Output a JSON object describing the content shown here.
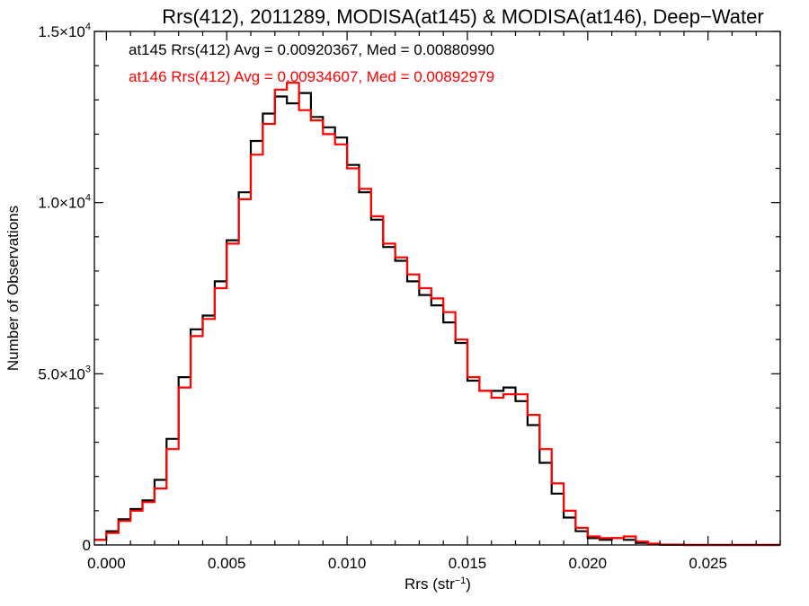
{
  "chart_data": {
    "type": "line",
    "title": "Rrs(412), 2011289, MODISA(at145) & MODISA(at146), Deep−Water",
    "xlabel_base": "Rrs (str",
    "xlabel_sup": "−1",
    "xlabel_close": ")",
    "ylabel": "Number of Observations",
    "xlim": [
      -0.0005,
      0.028
    ],
    "ylim": [
      0,
      15000
    ],
    "grid": false,
    "x_ticks": [
      {
        "value": 0.0,
        "label": "0.000"
      },
      {
        "value": 0.005,
        "label": "0.005"
      },
      {
        "value": 0.01,
        "label": "0.010"
      },
      {
        "value": 0.015,
        "label": "0.015"
      },
      {
        "value": 0.02,
        "label": "0.020"
      },
      {
        "value": 0.025,
        "label": "0.025"
      }
    ],
    "y_ticks": [
      {
        "value": 0,
        "mantissa": "0",
        "exp": ""
      },
      {
        "value": 5000,
        "mantissa": "5.0×10",
        "exp": "3"
      },
      {
        "value": 10000,
        "mantissa": "1.0×10",
        "exp": "4"
      },
      {
        "value": 15000,
        "mantissa": "1.5×10",
        "exp": "4"
      }
    ],
    "annotations": [
      {
        "text": "at145 Rrs(412) Avg = 0.00920367, Med = 0.00880990",
        "color": "#000000"
      },
      {
        "text": "at146 Rrs(412) Avg = 0.00934607, Med = 0.00892979",
        "color": "#ff0000"
      }
    ],
    "series": [
      {
        "color": "#000000",
        "points": [
          [
            -0.0005,
            150
          ],
          [
            0.0,
            400
          ],
          [
            0.0005,
            750
          ],
          [
            0.001,
            1050
          ],
          [
            0.0015,
            1300
          ],
          [
            0.002,
            1900
          ],
          [
            0.0025,
            3100
          ],
          [
            0.003,
            4900
          ],
          [
            0.0035,
            6300
          ],
          [
            0.004,
            6700
          ],
          [
            0.0045,
            7700
          ],
          [
            0.005,
            8900
          ],
          [
            0.0055,
            10300
          ],
          [
            0.006,
            11800
          ],
          [
            0.0065,
            12600
          ],
          [
            0.007,
            13100
          ],
          [
            0.0075,
            12900
          ],
          [
            0.008,
            13200
          ],
          [
            0.0085,
            12500
          ],
          [
            0.009,
            12200
          ],
          [
            0.0095,
            11900
          ],
          [
            0.01,
            11100
          ],
          [
            0.0105,
            10300
          ],
          [
            0.011,
            9500
          ],
          [
            0.0115,
            8700
          ],
          [
            0.012,
            8300
          ],
          [
            0.0125,
            7700
          ],
          [
            0.013,
            7300
          ],
          [
            0.0135,
            7000
          ],
          [
            0.014,
            6500
          ],
          [
            0.0145,
            5900
          ],
          [
            0.015,
            4800
          ],
          [
            0.0155,
            4500
          ],
          [
            0.016,
            4500
          ],
          [
            0.0165,
            4600
          ],
          [
            0.017,
            4200
          ],
          [
            0.0175,
            3500
          ],
          [
            0.018,
            2400
          ],
          [
            0.0185,
            1500
          ],
          [
            0.019,
            800
          ],
          [
            0.0195,
            400
          ],
          [
            0.02,
            200
          ],
          [
            0.0205,
            150
          ],
          [
            0.021,
            200
          ],
          [
            0.0215,
            150
          ],
          [
            0.022,
            60
          ],
          [
            0.0225,
            20
          ],
          [
            0.023,
            5
          ],
          [
            0.024,
            0
          ],
          [
            0.025,
            0
          ],
          [
            0.026,
            0
          ],
          [
            0.027,
            0
          ],
          [
            0.028,
            0
          ]
        ]
      },
      {
        "color": "#ff0000",
        "points": [
          [
            -0.0005,
            150
          ],
          [
            0.0,
            350
          ],
          [
            0.0005,
            700
          ],
          [
            0.001,
            1000
          ],
          [
            0.0015,
            1250
          ],
          [
            0.002,
            1650
          ],
          [
            0.0025,
            2800
          ],
          [
            0.003,
            4600
          ],
          [
            0.0035,
            6100
          ],
          [
            0.004,
            6600
          ],
          [
            0.0045,
            7500
          ],
          [
            0.005,
            8800
          ],
          [
            0.0055,
            10100
          ],
          [
            0.006,
            11400
          ],
          [
            0.0065,
            12300
          ],
          [
            0.007,
            13300
          ],
          [
            0.0075,
            13500
          ],
          [
            0.008,
            12700
          ],
          [
            0.0085,
            12400
          ],
          [
            0.009,
            12000
          ],
          [
            0.0095,
            11700
          ],
          [
            0.01,
            11000
          ],
          [
            0.0105,
            10400
          ],
          [
            0.011,
            9600
          ],
          [
            0.0115,
            8800
          ],
          [
            0.012,
            8400
          ],
          [
            0.0125,
            7900
          ],
          [
            0.013,
            7500
          ],
          [
            0.0135,
            7200
          ],
          [
            0.014,
            6800
          ],
          [
            0.0145,
            6000
          ],
          [
            0.015,
            4900
          ],
          [
            0.0155,
            4500
          ],
          [
            0.016,
            4300
          ],
          [
            0.0165,
            4400
          ],
          [
            0.017,
            4400
          ],
          [
            0.0175,
            3800
          ],
          [
            0.018,
            2800
          ],
          [
            0.0185,
            1800
          ],
          [
            0.019,
            1000
          ],
          [
            0.0195,
            500
          ],
          [
            0.02,
            250
          ],
          [
            0.0205,
            200
          ],
          [
            0.021,
            200
          ],
          [
            0.0215,
            250
          ],
          [
            0.022,
            100
          ],
          [
            0.0225,
            40
          ],
          [
            0.023,
            10
          ],
          [
            0.024,
            0
          ],
          [
            0.025,
            0
          ],
          [
            0.026,
            0
          ],
          [
            0.027,
            0
          ],
          [
            0.028,
            0
          ]
        ]
      }
    ]
  }
}
